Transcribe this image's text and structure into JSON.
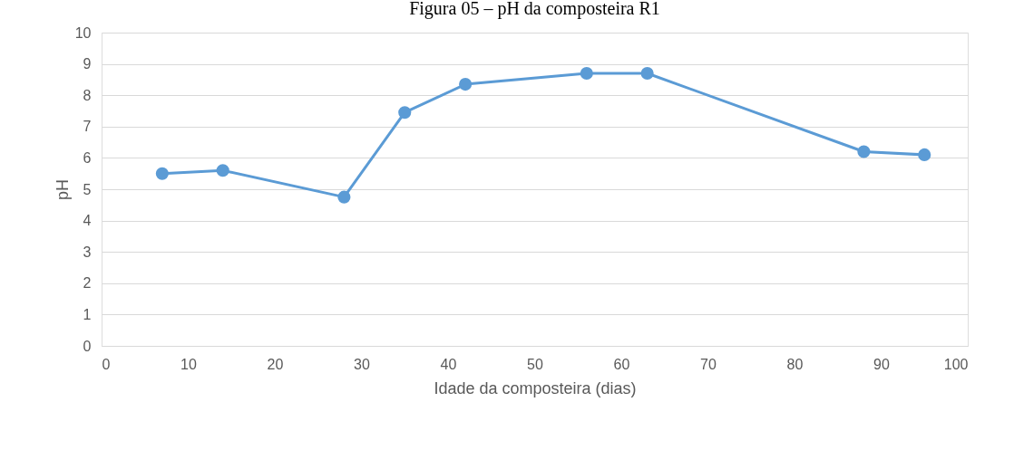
{
  "chart_data": {
    "type": "line",
    "title": "Figura 05 – pH da composteira R1",
    "xlabel": "Idade da composteira (dias)",
    "ylabel": "pH",
    "x": [
      7,
      14,
      28,
      35,
      42,
      56,
      63,
      88,
      95
    ],
    "series": [
      {
        "color": "#5b9bd5",
        "values": [
          5.5,
          5.6,
          4.75,
          7.45,
          8.35,
          8.7,
          8.7,
          6.2,
          6.1
        ]
      }
    ],
    "xlim": [
      0,
      100
    ],
    "xticks": [
      0,
      10,
      20,
      30,
      40,
      50,
      60,
      70,
      80,
      90,
      100
    ],
    "ylim": [
      0,
      10
    ],
    "yticks": [
      0,
      1,
      2,
      3,
      4,
      5,
      6,
      7,
      8,
      9,
      10
    ],
    "grid": "y",
    "marker": "circle",
    "line_style": "solid"
  }
}
